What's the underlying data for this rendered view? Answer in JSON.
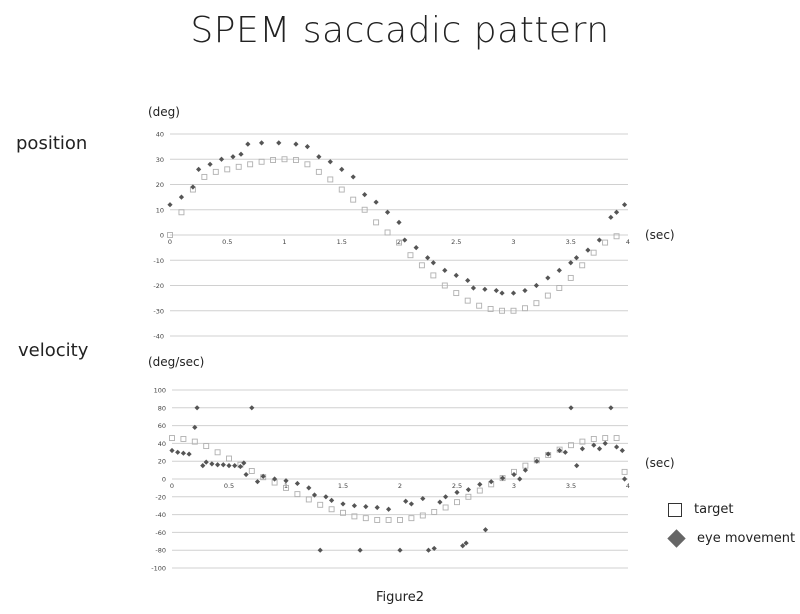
{
  "title": "SPEM saccadic pattern",
  "caption": "Figure2",
  "panels": {
    "position_label": "position",
    "velocity_label": "velocity",
    "position_unit": "(deg)",
    "velocity_unit": "(deg/sec)",
    "time_unit": "(sec)"
  },
  "legend": {
    "target": "target",
    "eye": "eye movement"
  },
  "colors": {
    "target": "#b0b0b0",
    "eye": "#555555",
    "grid": "#d0d0d0"
  },
  "chart_data": [
    {
      "type": "scatter",
      "ylim": [
        -40,
        40
      ],
      "xlim": [
        0,
        4
      ],
      "yticks": [
        -40,
        -30,
        -20,
        -10,
        0,
        10,
        20,
        30,
        40
      ],
      "xticks": [
        0,
        0.5,
        1,
        1.5,
        2,
        2.5,
        3,
        3.5,
        4
      ],
      "xtick_labels": [
        "0",
        "0.5",
        "1",
        "1.5",
        "2",
        "2.5",
        "3",
        "3.5",
        "4"
      ],
      "series": [
        {
          "name": "target",
          "marker": "open-square",
          "points": [
            [
              0,
              0
            ],
            [
              0.1,
              9
            ],
            [
              0.2,
              18
            ],
            [
              0.3,
              23
            ],
            [
              0.4,
              25
            ],
            [
              0.5,
              26
            ],
            [
              0.6,
              27
            ],
            [
              0.7,
              28
            ],
            [
              0.8,
              29
            ],
            [
              0.9,
              29.7
            ],
            [
              1,
              30
            ],
            [
              1.1,
              29.7
            ],
            [
              1.2,
              28
            ],
            [
              1.3,
              25
            ],
            [
              1.4,
              22
            ],
            [
              1.5,
              18
            ],
            [
              1.6,
              14
            ],
            [
              1.7,
              10
            ],
            [
              1.8,
              5
            ],
            [
              1.9,
              1
            ],
            [
              2,
              -3
            ],
            [
              2.1,
              -8
            ],
            [
              2.2,
              -12
            ],
            [
              2.3,
              -16
            ],
            [
              2.4,
              -20
            ],
            [
              2.5,
              -23
            ],
            [
              2.6,
              -26
            ],
            [
              2.7,
              -28
            ],
            [
              2.8,
              -29.3
            ],
            [
              2.9,
              -30
            ],
            [
              3,
              -30
            ],
            [
              3.1,
              -29
            ],
            [
              3.2,
              -27
            ],
            [
              3.3,
              -24
            ],
            [
              3.4,
              -21
            ],
            [
              3.5,
              -17
            ],
            [
              3.6,
              -12
            ],
            [
              3.7,
              -7
            ],
            [
              3.8,
              -3
            ],
            [
              3.9,
              -0.5
            ]
          ]
        },
        {
          "name": "eye movement",
          "marker": "filled-diamond",
          "points": [
            [
              0,
              12
            ],
            [
              0.1,
              15
            ],
            [
              0.2,
              19
            ],
            [
              0.25,
              26
            ],
            [
              0.35,
              28
            ],
            [
              0.45,
              30
            ],
            [
              0.55,
              31
            ],
            [
              0.62,
              32
            ],
            [
              0.68,
              36
            ],
            [
              0.8,
              36.5
            ],
            [
              0.95,
              36.5
            ],
            [
              1.1,
              36
            ],
            [
              1.2,
              35
            ],
            [
              1.3,
              31
            ],
            [
              1.4,
              29
            ],
            [
              1.5,
              26
            ],
            [
              1.6,
              23
            ],
            [
              1.7,
              16
            ],
            [
              1.8,
              13
            ],
            [
              1.9,
              9
            ],
            [
              2,
              5
            ],
            [
              2.05,
              -2
            ],
            [
              2.15,
              -5
            ],
            [
              2.25,
              -9
            ],
            [
              2.3,
              -11
            ],
            [
              2.4,
              -14
            ],
            [
              2.5,
              -16
            ],
            [
              2.6,
              -18
            ],
            [
              2.65,
              -21
            ],
            [
              2.75,
              -21.5
            ],
            [
              2.85,
              -22
            ],
            [
              2.9,
              -23
            ],
            [
              3,
              -23
            ],
            [
              3.1,
              -22
            ],
            [
              3.2,
              -20
            ],
            [
              3.3,
              -17
            ],
            [
              3.4,
              -14
            ],
            [
              3.5,
              -11
            ],
            [
              3.55,
              -9
            ],
            [
              3.65,
              -6
            ],
            [
              3.75,
              -2
            ],
            [
              3.85,
              7
            ],
            [
              3.9,
              9
            ],
            [
              3.97,
              12
            ]
          ]
        }
      ]
    },
    {
      "type": "scatter",
      "ylim": [
        -100,
        100
      ],
      "xlim": [
        0,
        4
      ],
      "yticks": [
        -100,
        -80,
        -60,
        -40,
        -20,
        0,
        20,
        40,
        60,
        80,
        100
      ],
      "xticks": [
        0,
        0.5,
        1,
        1.5,
        2,
        2.5,
        3,
        3.5,
        4
      ],
      "xtick_labels": [
        "0",
        "0.5",
        "1",
        "1.5",
        "2",
        "2.5",
        "3",
        "3.5",
        "4"
      ],
      "series": [
        {
          "name": "target",
          "marker": "open-square",
          "points": [
            [
              0,
              46
            ],
            [
              0.1,
              45
            ],
            [
              0.2,
              42
            ],
            [
              0.3,
              37
            ],
            [
              0.4,
              30
            ],
            [
              0.5,
              23
            ],
            [
              0.6,
              16
            ],
            [
              0.7,
              9
            ],
            [
              0.8,
              2
            ],
            [
              0.9,
              -4
            ],
            [
              1,
              -10
            ],
            [
              1.1,
              -17
            ],
            [
              1.2,
              -23
            ],
            [
              1.3,
              -29
            ],
            [
              1.4,
              -34
            ],
            [
              1.5,
              -38
            ],
            [
              1.6,
              -42
            ],
            [
              1.7,
              -44
            ],
            [
              1.8,
              -46
            ],
            [
              1.9,
              -46
            ],
            [
              2,
              -46
            ],
            [
              2.1,
              -44
            ],
            [
              2.2,
              -41
            ],
            [
              2.3,
              -37
            ],
            [
              2.4,
              -32
            ],
            [
              2.5,
              -26
            ],
            [
              2.6,
              -20
            ],
            [
              2.7,
              -13
            ],
            [
              2.8,
              -6
            ],
            [
              2.9,
              1
            ],
            [
              3,
              8
            ],
            [
              3.1,
              15
            ],
            [
              3.2,
              21
            ],
            [
              3.3,
              27
            ],
            [
              3.4,
              33
            ],
            [
              3.5,
              38
            ],
            [
              3.6,
              42
            ],
            [
              3.7,
              45
            ],
            [
              3.8,
              46
            ],
            [
              3.9,
              46
            ],
            [
              3.97,
              8
            ]
          ]
        },
        {
          "name": "eye movement",
          "marker": "filled-diamond",
          "points": [
            [
              0,
              32
            ],
            [
              0.05,
              30
            ],
            [
              0.1,
              29
            ],
            [
              0.15,
              28
            ],
            [
              0.2,
              58
            ],
            [
              0.22,
              80
            ],
            [
              0.27,
              15
            ],
            [
              0.3,
              19
            ],
            [
              0.35,
              17
            ],
            [
              0.4,
              16
            ],
            [
              0.45,
              16
            ],
            [
              0.5,
              15
            ],
            [
              0.55,
              15
            ],
            [
              0.6,
              14
            ],
            [
              0.63,
              18
            ],
            [
              0.65,
              5
            ],
            [
              0.7,
              80
            ],
            [
              0.75,
              -3
            ],
            [
              0.8,
              3
            ],
            [
              0.9,
              0
            ],
            [
              1,
              -2
            ],
            [
              1.1,
              -5
            ],
            [
              1.2,
              -10
            ],
            [
              1.25,
              -18
            ],
            [
              1.3,
              -80
            ],
            [
              1.35,
              -20
            ],
            [
              1.4,
              -24
            ],
            [
              1.5,
              -28
            ],
            [
              1.6,
              -30
            ],
            [
              1.65,
              -80
            ],
            [
              1.7,
              -31
            ],
            [
              1.8,
              -32
            ],
            [
              1.9,
              -34
            ],
            [
              2,
              -80
            ],
            [
              2.05,
              -25
            ],
            [
              2.1,
              -28
            ],
            [
              2.2,
              -22
            ],
            [
              2.25,
              -80
            ],
            [
              2.3,
              -78
            ],
            [
              2.35,
              -26
            ],
            [
              2.4,
              -20
            ],
            [
              2.5,
              -15
            ],
            [
              2.55,
              -75
            ],
            [
              2.58,
              -72
            ],
            [
              2.6,
              -12
            ],
            [
              2.7,
              -6
            ],
            [
              2.75,
              -57
            ],
            [
              2.8,
              -3
            ],
            [
              2.9,
              1
            ],
            [
              3,
              5
            ],
            [
              3.05,
              0
            ],
            [
              3.1,
              10
            ],
            [
              3.2,
              20
            ],
            [
              3.3,
              28
            ],
            [
              3.4,
              32
            ],
            [
              3.45,
              30
            ],
            [
              3.5,
              80
            ],
            [
              3.55,
              15
            ],
            [
              3.6,
              34
            ],
            [
              3.7,
              38
            ],
            [
              3.75,
              34
            ],
            [
              3.8,
              40
            ],
            [
              3.85,
              80
            ],
            [
              3.9,
              36
            ],
            [
              3.95,
              32
            ],
            [
              3.97,
              0
            ]
          ]
        }
      ]
    }
  ]
}
